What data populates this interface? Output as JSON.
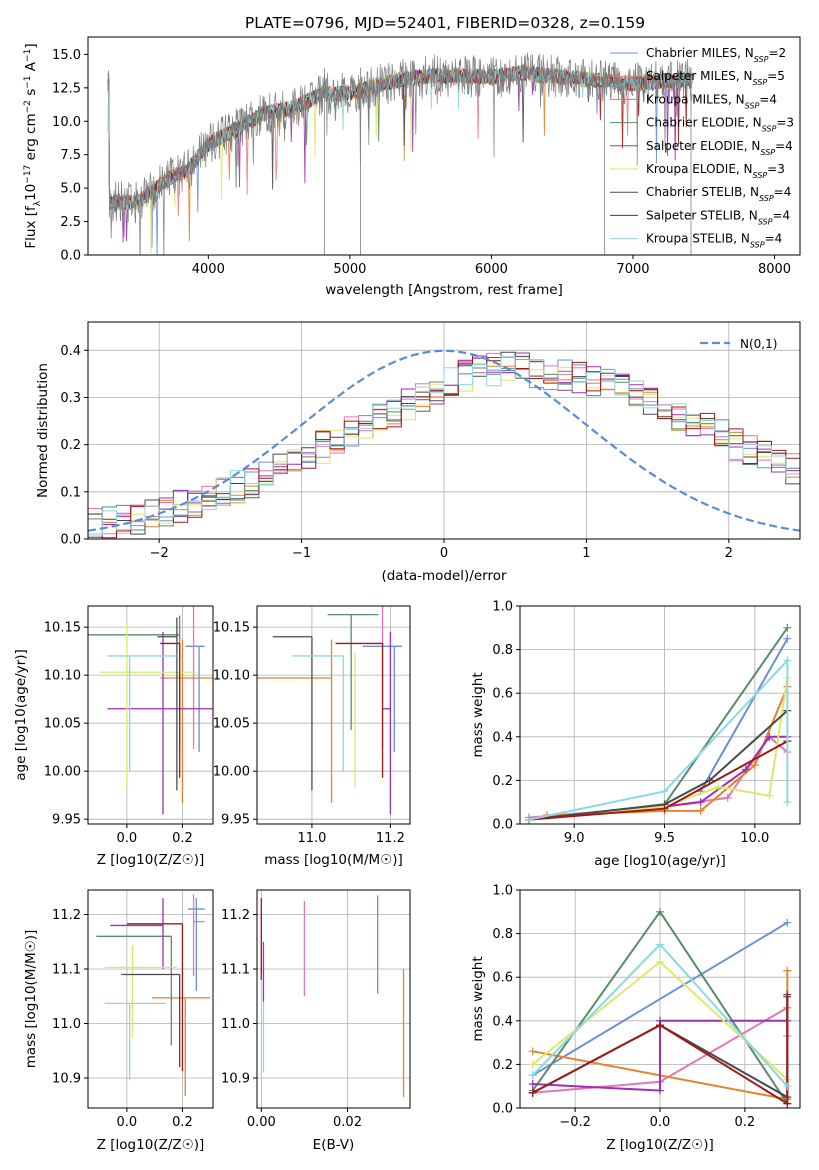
{
  "figure": {
    "title": "PLATE=0796, MJD=52401, FIBERID=0328, z=0.159"
  },
  "chart_data": [
    {
      "id": "spectrum",
      "type": "line",
      "title": "PLATE=0796, MJD=52401, FIBERID=0328, z=0.159",
      "xlabel": "wavelength [Angstrom, rest frame]",
      "ylabel": "Flux [f_λ 10^-17 erg cm^-2 s^-1 A^-1]",
      "xlim": [
        3150,
        8180
      ],
      "ylim": [
        0,
        16.3
      ],
      "xticks": [
        4000,
        5000,
        6000,
        7000,
        8000
      ],
      "yticks": [
        0.0,
        2.5,
        5.0,
        7.5,
        10.0,
        12.5,
        15.0
      ],
      "grid": false,
      "legend_position": "top-right",
      "observed_color": "#7f7f7f",
      "continuum_points": [
        [
          3300,
          4.0
        ],
        [
          3500,
          3.9
        ],
        [
          3700,
          5.6
        ],
        [
          3850,
          6.3
        ],
        [
          4000,
          8.3
        ],
        [
          4200,
          9.4
        ],
        [
          4400,
          10.6
        ],
        [
          4600,
          11.0
        ],
        [
          4800,
          12.0
        ],
        [
          5000,
          12.1
        ],
        [
          5200,
          12.7
        ],
        [
          5400,
          13.2
        ],
        [
          5600,
          13.4
        ],
        [
          5800,
          13.4
        ],
        [
          6000,
          13.3
        ],
        [
          6200,
          13.6
        ],
        [
          6400,
          13.4
        ],
        [
          6600,
          13.2
        ],
        [
          6800,
          13.0
        ],
        [
          7000,
          12.8
        ],
        [
          7200,
          13.0
        ],
        [
          7400,
          13.1
        ]
      ],
      "series": [
        {
          "name": "Chabrier MILES, N_SSP=2",
          "color": "#6a8fd6"
        },
        {
          "name": "Salpeter MILES, N_SSP=5",
          "color": "#f07a7a"
        },
        {
          "name": "Kroupa MILES, N_SSP=4",
          "color": "#e5822a"
        },
        {
          "name": "Chabrier ELODIE, N_SSP=3",
          "color": "#5a8c6c"
        },
        {
          "name": "Salpeter ELODIE, N_SSP=4",
          "color": "#9b30b5"
        },
        {
          "name": "Kroupa ELODIE, N_SSP=3",
          "color": "#dde86a"
        },
        {
          "name": "Chabrier STELIB, N_SSP=4",
          "color": "#4a4a4a"
        },
        {
          "name": "Salpeter STELIB, N_SSP=4",
          "color": "#a01818"
        },
        {
          "name": "Kroupa STELIB, N_SSP=4",
          "color": "#8ad8e0"
        }
      ]
    },
    {
      "id": "residuals",
      "type": "line",
      "xlabel": "(data-model)/error",
      "ylabel": "Normed distribution",
      "xlim": [
        -2.5,
        2.5
      ],
      "ylim": [
        0,
        0.46
      ],
      "xticks": [
        -2,
        -1,
        0,
        1,
        2
      ],
      "yticks": [
        0.0,
        0.1,
        0.2,
        0.3,
        0.4
      ],
      "grid": true,
      "legend_position": "top-right",
      "gaussian_label": "N(0,1)",
      "gaussian_color": "#5b8bd6",
      "bin_width": 0.1,
      "bin_start": -2.5,
      "base_values": [
        0.03,
        0.033,
        0.038,
        0.045,
        0.052,
        0.06,
        0.07,
        0.08,
        0.09,
        0.1,
        0.11,
        0.12,
        0.135,
        0.15,
        0.165,
        0.18,
        0.195,
        0.21,
        0.225,
        0.24,
        0.255,
        0.27,
        0.285,
        0.3,
        0.315,
        0.33,
        0.345,
        0.355,
        0.36,
        0.365,
        0.36,
        0.355,
        0.35,
        0.345,
        0.34,
        0.335,
        0.33,
        0.32,
        0.31,
        0.295,
        0.28,
        0.265,
        0.25,
        0.235,
        0.22,
        0.2,
        0.19,
        0.175,
        0.16,
        0.15,
        0.14,
        0.13,
        0.12,
        0.11,
        0.1,
        0.09,
        0.08,
        0.07,
        0.065,
        0.06
      ],
      "series": [
        {
          "color": "#6a8fd6"
        },
        {
          "color": "#e575b5"
        },
        {
          "color": "#e5822a"
        },
        {
          "color": "#5a8c6c"
        },
        {
          "color": "#9b30b5"
        },
        {
          "color": "#dde86a"
        },
        {
          "color": "#4a4a4a"
        },
        {
          "color": "#a01818"
        },
        {
          "color": "#8ad8e0"
        }
      ]
    },
    {
      "id": "age_vs_Z",
      "type": "scatter",
      "xlabel": "Z [log10(Z/Z☉)]",
      "ylabel": "age [log10(age/yr)]",
      "xlim": [
        -0.14,
        0.31
      ],
      "ylim": [
        9.945,
        10.172
      ],
      "xticks": [
        0.0,
        0.2
      ],
      "yticks": [
        9.95,
        10.0,
        10.05,
        10.1,
        10.15
      ],
      "grid": true,
      "points": [
        {
          "x": 0.26,
          "xerr": [
            0.05,
            0.02
          ],
          "y": 10.13,
          "yerr": [
            0.11,
            0.0
          ],
          "color": "#6a8fd6"
        },
        {
          "x": 0.24,
          "xerr": [
            0.0,
            0.0
          ],
          "y": 10.093,
          "yerr": [
            0.07,
            0.1
          ],
          "color": "#e575b5"
        },
        {
          "x": 0.2,
          "xerr": [
            0.08,
            0.12
          ],
          "y": 10.097,
          "yerr": [
            0.13,
            0.04
          ],
          "color": "#e5822a"
        },
        {
          "x": 0.19,
          "xerr": [
            0.33,
            0.0
          ],
          "y": 10.142,
          "yerr": [
            0.12,
            0.02
          ],
          "color": "#5a8c6c"
        },
        {
          "x": 0.13,
          "xerr": [
            0.2,
            0.24
          ],
          "y": 10.065,
          "yerr": [
            0.11,
            0.08
          ],
          "color": "#9b30b5"
        },
        {
          "x": 0.0,
          "xerr": [
            0.1,
            0.25
          ],
          "y": 10.103,
          "yerr": [
            0.12,
            0.05
          ],
          "color": "#dde86a"
        },
        {
          "x": 0.18,
          "xerr": [
            0.07,
            0.0
          ],
          "y": 10.14,
          "yerr": [
            0.16,
            0.02
          ],
          "color": "#4a4a4a"
        },
        {
          "x": 0.19,
          "xerr": [
            0.07,
            0.0
          ],
          "y": 10.133,
          "yerr": [
            0.14,
            0.0
          ],
          "color": "#a01818"
        },
        {
          "x": 0.01,
          "xerr": [
            0.08,
            0.17
          ],
          "y": 10.12,
          "yerr": [
            0.12,
            0.0
          ],
          "color": "#8ad8e0"
        }
      ]
    },
    {
      "id": "age_vs_mass",
      "type": "scatter",
      "xlabel": "mass [log10(M/M☉)]",
      "ylabel": "",
      "xlim": [
        10.86,
        11.25
      ],
      "ylim": [
        9.945,
        10.172
      ],
      "xticks": [
        11.0,
        11.2
      ],
      "yticks": [
        9.95,
        10.0,
        10.05,
        10.1,
        10.15
      ],
      "grid": true,
      "points": [
        {
          "x": 11.21,
          "xerr": [
            0.08,
            0.02
          ],
          "y": 10.13,
          "yerr": [
            0.11,
            0.0
          ],
          "color": "#6a8fd6"
        },
        {
          "x": 11.18,
          "xerr": [
            0.0,
            0.0
          ],
          "y": 10.093,
          "yerr": [
            0.07,
            0.1
          ],
          "color": "#e575b5"
        },
        {
          "x": 11.05,
          "xerr": [
            0.2,
            0.0
          ],
          "y": 10.097,
          "yerr": [
            0.13,
            0.04
          ],
          "color": "#e5822a"
        },
        {
          "x": 11.1,
          "xerr": [
            0.06,
            0.07
          ],
          "y": 10.163,
          "yerr": [
            0.12,
            0.0
          ],
          "color": "#5a8c6c"
        },
        {
          "x": 11.2,
          "xerr": [
            0.02,
            0.0
          ],
          "y": 10.065,
          "yerr": [
            0.11,
            0.08
          ],
          "color": "#9b30b5"
        },
        {
          "x": 11.11,
          "xerr": [
            0.0,
            0.0
          ],
          "y": 10.103,
          "yerr": [
            0.12,
            0.02
          ],
          "color": "#dde86a"
        },
        {
          "x": 11.0,
          "xerr": [
            0.1,
            0.0
          ],
          "y": 10.14,
          "yerr": [
            0.16,
            0.0
          ],
          "color": "#4a4a4a"
        },
        {
          "x": 11.18,
          "xerr": [
            0.12,
            0.0
          ],
          "y": 10.133,
          "yerr": [
            0.14,
            0.0
          ],
          "color": "#a01818"
        },
        {
          "x": 11.08,
          "xerr": [
            0.13,
            0.0
          ],
          "y": 10.12,
          "yerr": [
            0.12,
            0.0
          ],
          "color": "#8ad8e0"
        }
      ]
    },
    {
      "id": "massweight_vs_age",
      "type": "line",
      "xlabel": "age [log10(age/yr)]",
      "ylabel": "mass weight",
      "xlim": [
        8.7,
        10.25
      ],
      "ylim": [
        0,
        1
      ],
      "xticks": [
        9.0,
        9.5,
        10.0
      ],
      "yticks": [
        0.0,
        0.2,
        0.4,
        0.6,
        0.8,
        1.0
      ],
      "grid": true,
      "series": [
        {
          "color": "#6a8fd6",
          "x": [
            9.7,
            10.18
          ],
          "y": [
            0.15,
            0.85
          ]
        },
        {
          "color": "#e575b5",
          "x": [
            8.75,
            9.5,
            9.85,
            10.08,
            10.18
          ],
          "y": [
            0.03,
            0.08,
            0.12,
            0.4,
            0.33
          ]
        },
        {
          "color": "#e5822a",
          "x": [
            8.85,
            9.5,
            9.7,
            10.0,
            10.18
          ],
          "y": [
            0.04,
            0.06,
            0.06,
            0.27,
            0.63
          ]
        },
        {
          "color": "#5a8c6c",
          "x": [
            8.75,
            9.5,
            10.18
          ],
          "y": [
            0.02,
            0.09,
            0.9
          ]
        },
        {
          "color": "#9b30b5",
          "x": [
            8.75,
            9.5,
            9.7,
            9.95,
            10.08,
            10.18
          ],
          "y": [
            0.02,
            0.08,
            0.1,
            0.25,
            0.4,
            0.4
          ]
        },
        {
          "color": "#dde86a",
          "x": [
            8.75,
            9.5,
            9.8,
            10.08,
            10.18
          ],
          "y": [
            0.02,
            0.08,
            0.17,
            0.13,
            0.67
          ]
        },
        {
          "color": "#4a4a4a",
          "x": [
            8.75,
            9.5,
            9.75,
            10.18
          ],
          "y": [
            0.02,
            0.09,
            0.2,
            0.52
          ]
        },
        {
          "color": "#a01818",
          "x": [
            8.75,
            9.5,
            10.18
          ],
          "y": [
            0.02,
            0.07,
            0.38
          ]
        },
        {
          "color": "#8ad8e0",
          "x": [
            8.75,
            9.5,
            10.18,
            10.18
          ],
          "y": [
            0.02,
            0.15,
            0.75,
            0.1
          ]
        }
      ]
    },
    {
      "id": "mass_vs_Z",
      "type": "scatter",
      "xlabel": "Z [log10(Z/Z☉)]",
      "ylabel": "mass [log10(M/M☉)]",
      "xlim": [
        -0.14,
        0.31
      ],
      "ylim": [
        10.845,
        11.245
      ],
      "xticks": [
        0.0,
        0.2
      ],
      "yticks": [
        10.9,
        11.0,
        11.1,
        11.2
      ],
      "grid": true,
      "points": [
        {
          "x": 0.25,
          "xerr": [
            0.03,
            0.03
          ],
          "y": 11.21,
          "yerr": [
            0.15,
            0.02
          ],
          "color": "#6a8fd6"
        },
        {
          "x": 0.24,
          "xerr": [
            0.0,
            0.04
          ],
          "y": 11.187,
          "yerr": [
            0.1,
            0.05
          ],
          "color": "#e575b5"
        },
        {
          "x": 0.21,
          "xerr": [
            0.12,
            0.09
          ],
          "y": 11.047,
          "yerr": [
            0.18,
            0.0
          ],
          "color": "#e5822a"
        },
        {
          "x": 0.16,
          "xerr": [
            0.27,
            0.0
          ],
          "y": 11.16,
          "yerr": [
            0.2,
            0.0
          ],
          "color": "#5a8c6c"
        },
        {
          "x": 0.13,
          "xerr": [
            0.19,
            0.0
          ],
          "y": 11.18,
          "yerr": [
            0.08,
            0.05
          ],
          "color": "#9b30b5"
        },
        {
          "x": 0.02,
          "xerr": [
            0.1,
            0.16
          ],
          "y": 11.103,
          "yerr": [
            0.13,
            0.04
          ],
          "color": "#dde86a"
        },
        {
          "x": 0.19,
          "xerr": [
            0.21,
            0.0
          ],
          "y": 11.09,
          "yerr": [
            0.17,
            0.0
          ],
          "color": "#4a4a4a"
        },
        {
          "x": 0.2,
          "xerr": [
            0.2,
            0.0
          ],
          "y": 11.183,
          "yerr": [
            0.27,
            0.0
          ],
          "color": "#a01818"
        },
        {
          "x": 0.01,
          "xerr": [
            0.09,
            0.13
          ],
          "y": 11.037,
          "yerr": [
            0.14,
            0.0
          ],
          "color": "#8ad8e0"
        }
      ]
    },
    {
      "id": "mass_vs_ebv",
      "type": "scatter",
      "xlabel": "E(B-V)",
      "ylabel": "",
      "xlim": [
        -0.001,
        0.0345
      ],
      "ylim": [
        10.845,
        11.245
      ],
      "xticks": [
        0.0,
        0.02
      ],
      "yticks": [
        10.9,
        11.0,
        11.1,
        11.2
      ],
      "grid": true,
      "points": [
        {
          "x": 0.027,
          "y": 11.13,
          "yerr": [
            0.075,
            0.105
          ],
          "color": "#6a8fd6"
        },
        {
          "x": 0.01,
          "y": 11.12,
          "yerr": [
            0.07,
            0.105
          ],
          "color": "#e575b5"
        },
        {
          "x": 0.033,
          "y": 11.0,
          "yerr": [
            0.135,
            0.1
          ],
          "color": "#e5822a"
        },
        {
          "x": 0.0,
          "y": 11.15,
          "yerr": [
            0.07,
            0.08
          ],
          "color": "#a01818"
        },
        {
          "x": 0.0005,
          "y": 11.1,
          "yerr": [
            0.06,
            0.05
          ],
          "color": "#9b30b5"
        },
        {
          "x": 0.0005,
          "y": 10.98,
          "yerr": [
            0.07,
            0.06
          ],
          "color": "#8ad8e0"
        }
      ]
    },
    {
      "id": "massweight_vs_Z",
      "type": "line",
      "xlabel": "Z [log10(Z/Z☉)]",
      "ylabel": "mass weight",
      "xlim": [
        -0.33,
        0.33
      ],
      "ylim": [
        0,
        1
      ],
      "xticks": [
        -0.2,
        0.0,
        0.2
      ],
      "yticks": [
        0.0,
        0.2,
        0.4,
        0.6,
        0.8,
        1.0
      ],
      "grid": true,
      "series": [
        {
          "color": "#6a8fd6",
          "x": [
            -0.3,
            0.3
          ],
          "y": [
            0.15,
            0.85
          ]
        },
        {
          "color": "#e575b5",
          "x": [
            -0.3,
            0.0,
            0.3,
            0.3
          ],
          "y": [
            0.07,
            0.12,
            0.46,
            0.33
          ]
        },
        {
          "color": "#e5822a",
          "x": [
            -0.3,
            0.3,
            0.3
          ],
          "y": [
            0.26,
            0.04,
            0.63
          ]
        },
        {
          "color": "#5a8c6c",
          "x": [
            -0.3,
            0.0,
            0.3
          ],
          "y": [
            0.08,
            0.9,
            0.02
          ]
        },
        {
          "color": "#9b30b5",
          "x": [
            -0.3,
            0.0,
            0.0,
            0.3
          ],
          "y": [
            0.11,
            0.08,
            0.4,
            0.4
          ]
        },
        {
          "color": "#dde86a",
          "x": [
            -0.3,
            0.0,
            0.3
          ],
          "y": [
            0.2,
            0.67,
            0.13
          ]
        },
        {
          "color": "#4a4a4a",
          "x": [
            -0.3,
            0.0,
            0.3,
            0.3
          ],
          "y": [
            0.07,
            0.38,
            0.05,
            0.52
          ]
        },
        {
          "color": "#a01818",
          "x": [
            -0.3,
            0.0,
            0.3,
            0.3
          ],
          "y": [
            0.07,
            0.38,
            0.02,
            0.51
          ]
        },
        {
          "color": "#8ad8e0",
          "x": [
            -0.3,
            0.0,
            0.3
          ],
          "y": [
            0.15,
            0.75,
            0.1
          ]
        }
      ]
    }
  ]
}
